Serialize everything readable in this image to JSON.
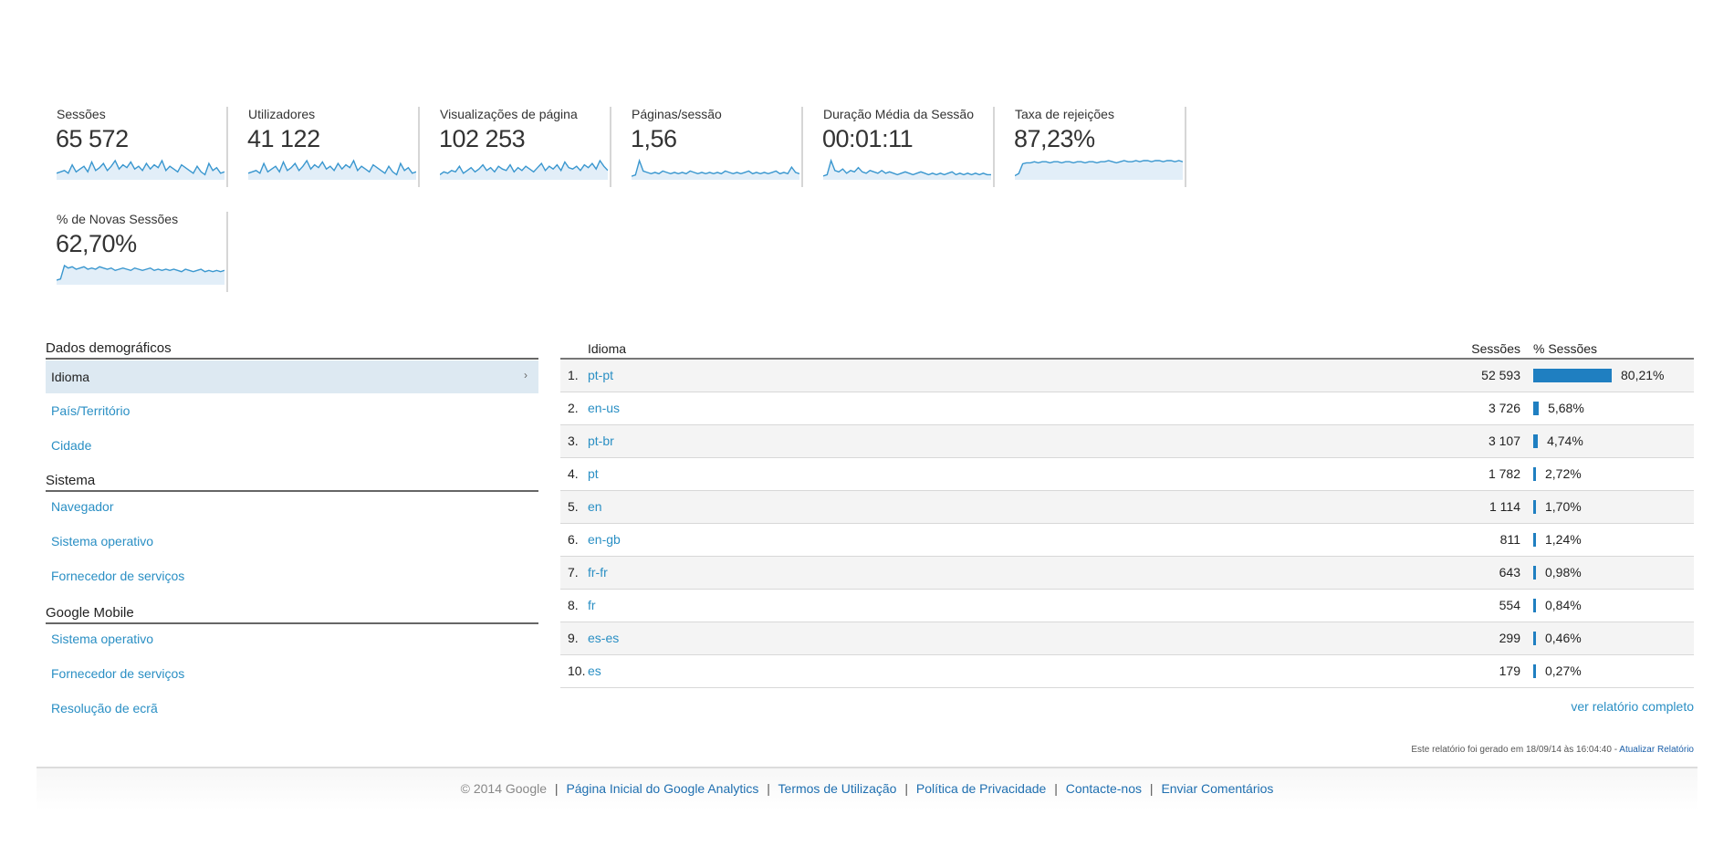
{
  "metrics": [
    {
      "label": "Sessões",
      "value": "65 572",
      "spark": [
        4,
        5,
        6,
        4,
        10,
        5,
        7,
        9,
        5,
        12,
        6,
        8,
        11,
        6,
        9,
        13,
        7,
        10,
        8,
        12,
        7,
        9,
        6,
        11,
        7,
        10,
        8,
        13,
        6,
        9,
        7,
        5,
        10,
        8,
        6,
        4,
        9,
        5,
        3,
        11,
        6,
        8,
        4,
        5
      ]
    },
    {
      "label": "Utilizadores",
      "value": "41 122",
      "spark": [
        4,
        5,
        6,
        4,
        11,
        5,
        7,
        9,
        5,
        12,
        6,
        8,
        11,
        6,
        9,
        13,
        7,
        10,
        8,
        12,
        7,
        9,
        6,
        11,
        7,
        10,
        8,
        13,
        6,
        9,
        7,
        5,
        10,
        8,
        6,
        4,
        9,
        5,
        3,
        11,
        6,
        8,
        4,
        5
      ]
    },
    {
      "label": "Visualizações de página",
      "value": "102 253",
      "spark": [
        3,
        5,
        4,
        6,
        5,
        9,
        4,
        6,
        8,
        5,
        7,
        10,
        6,
        8,
        5,
        9,
        7,
        6,
        10,
        5,
        8,
        6,
        9,
        7,
        5,
        8,
        11,
        6,
        9,
        7,
        10,
        6,
        12,
        8,
        7,
        9,
        6,
        10,
        8,
        11,
        7,
        13,
        9,
        6
      ]
    },
    {
      "label": "Páginas/sessão",
      "value": "1,56",
      "spark": [
        2,
        3,
        14,
        6,
        5,
        4,
        5,
        4,
        6,
        5,
        4,
        5,
        4,
        5,
        4,
        6,
        5,
        4,
        5,
        4,
        5,
        4,
        5,
        4,
        6,
        5,
        4,
        5,
        4,
        5,
        6,
        4,
        5,
        4,
        5,
        4,
        5,
        6,
        4,
        5,
        4,
        9,
        5,
        4
      ]
    },
    {
      "label": "Duração Média da Sessão",
      "value": "00:01:11",
      "spark": [
        2,
        3,
        13,
        6,
        5,
        7,
        4,
        6,
        5,
        8,
        5,
        4,
        6,
        5,
        4,
        6,
        4,
        5,
        4,
        3,
        4,
        5,
        4,
        3,
        4,
        5,
        4,
        3,
        4,
        3,
        4,
        3,
        4,
        5,
        3,
        4,
        3,
        4,
        3,
        4,
        3,
        4,
        3,
        3
      ]
    },
    {
      "label": "Taxa de rejeições",
      "value": "87,23%",
      "spark": [
        3,
        5,
        14,
        15,
        15,
        16,
        15,
        16,
        16,
        15,
        16,
        16,
        15,
        16,
        16,
        15,
        16,
        16,
        15,
        16,
        16,
        15,
        16,
        16,
        17,
        16,
        15,
        16,
        17,
        16,
        16,
        17,
        16,
        17,
        17,
        16,
        17,
        17,
        16,
        17,
        17,
        16,
        17,
        16
      ]
    },
    {
      "label": "% de Novas Sessões",
      "value": "62,70%",
      "spark": [
        3,
        4,
        15,
        13,
        14,
        12,
        13,
        14,
        12,
        13,
        12,
        14,
        13,
        12,
        13,
        11,
        12,
        13,
        12,
        11,
        13,
        12,
        11,
        12,
        13,
        11,
        12,
        11,
        12,
        11,
        12,
        11,
        10,
        12,
        11,
        10,
        11,
        12,
        10,
        11,
        10,
        11,
        10,
        11
      ]
    }
  ],
  "nav": {
    "demographics_header": "Dados demográficos",
    "demographics_items": [
      "Idioma",
      "País/Território",
      "Cidade"
    ],
    "system_header": "Sistema",
    "system_items": [
      "Navegador",
      "Sistema operativo",
      "Fornecedor de serviços"
    ],
    "mobile_header": "Google Mobile",
    "mobile_items": [
      "Sistema operativo",
      "Fornecedor de serviços",
      "Resolução de ecrã"
    ],
    "active_arrow": "›"
  },
  "table": {
    "col_language": "Idioma",
    "col_sessions": "Sessões",
    "col_pct": "% Sessões",
    "bar_color": "#1f7fc1",
    "rows": [
      {
        "idx": "1.",
        "lang": "pt-pt",
        "sessions": "52 593",
        "pct": "80,21%",
        "share": 80.21
      },
      {
        "idx": "2.",
        "lang": "en-us",
        "sessions": "3 726",
        "pct": "5,68%",
        "share": 5.68
      },
      {
        "idx": "3.",
        "lang": "pt-br",
        "sessions": "3 107",
        "pct": "4,74%",
        "share": 4.74
      },
      {
        "idx": "4.",
        "lang": "pt",
        "sessions": "1 782",
        "pct": "2,72%",
        "share": 2.72
      },
      {
        "idx": "5.",
        "lang": "en",
        "sessions": "1 114",
        "pct": "1,70%",
        "share": 1.7
      },
      {
        "idx": "6.",
        "lang": "en-gb",
        "sessions": "811",
        "pct": "1,24%",
        "share": 1.24
      },
      {
        "idx": "7.",
        "lang": "fr-fr",
        "sessions": "643",
        "pct": "0,98%",
        "share": 0.98
      },
      {
        "idx": "8.",
        "lang": "fr",
        "sessions": "554",
        "pct": "0,84%",
        "share": 0.84
      },
      {
        "idx": "9.",
        "lang": "es-es",
        "sessions": "299",
        "pct": "0,46%",
        "share": 0.46
      },
      {
        "idx": "10.",
        "lang": "es",
        "sessions": "179",
        "pct": "0,27%",
        "share": 0.27
      }
    ],
    "full_report": "ver relatório completo"
  },
  "generated_note": {
    "text": "Este relatório foi gerado em 18/09/14 às 16:04:40 - ",
    "refresh": "Atualizar Relatório"
  },
  "footer": {
    "copyright": "© 2014 Google",
    "links": [
      "Página Inicial do Google Analytics",
      "Termos de Utilização",
      "Política de Privacidade",
      "Contacte-nos",
      "Enviar Comentários"
    ]
  }
}
